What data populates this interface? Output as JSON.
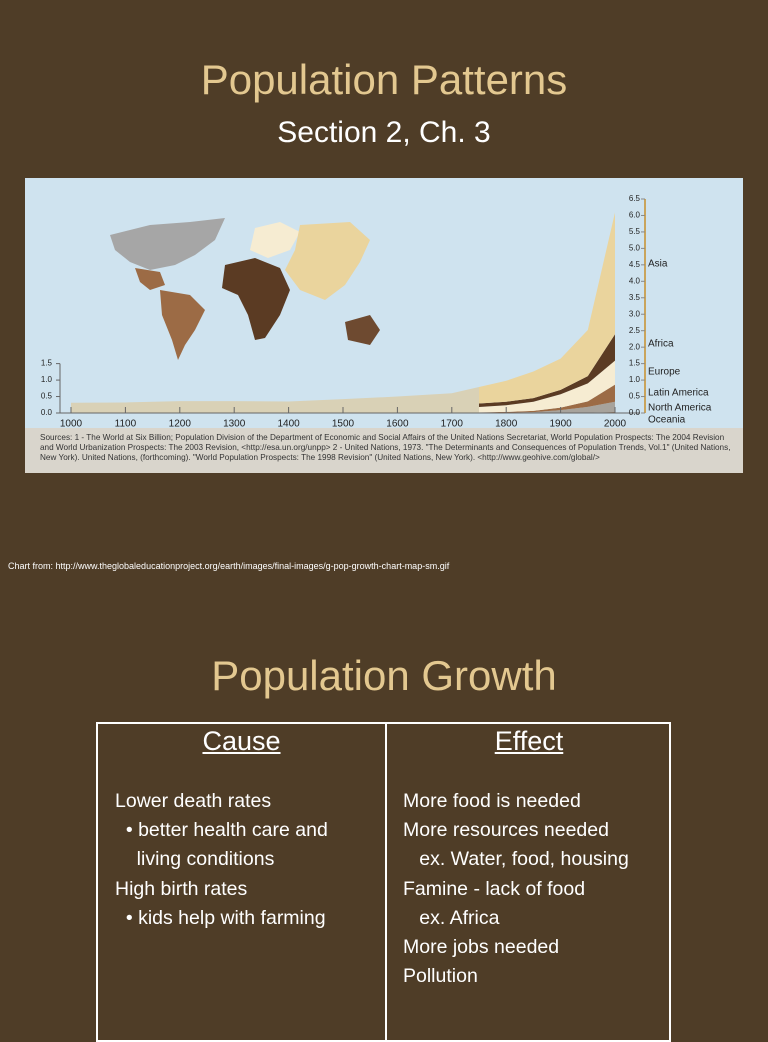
{
  "slide1": {
    "title": "Population Patterns",
    "subtitle": "Section 2, Ch. 3",
    "credit": "Chart from: http://www.theglobaleducationproject.org/earth/images/final-images/g-pop-growth-chart-map-sm.gif"
  },
  "figure": {
    "type": "area",
    "early": {
      "x": [
        1000,
        1100,
        1200,
        1300,
        1400,
        1500,
        1600,
        1700,
        1750
      ],
      "values": [
        0.31,
        0.32,
        0.36,
        0.36,
        0.35,
        0.42,
        0.5,
        0.6,
        0.79
      ],
      "color": "#d9d1b6"
    },
    "x": [
      1750,
      1800,
      1850,
      1900,
      1950,
      2000
    ],
    "series": [
      {
        "name": "Oceania",
        "color": "#8a6a4c",
        "values": [
          0.002,
          0.002,
          0.002,
          0.006,
          0.013,
          0.031
        ]
      },
      {
        "name": "North America",
        "color": "#a7a39c",
        "values": [
          0.002,
          0.007,
          0.026,
          0.082,
          0.172,
          0.31
        ]
      },
      {
        "name": "Latin America",
        "color": "#9c6b45",
        "values": [
          0.016,
          0.024,
          0.038,
          0.074,
          0.167,
          0.52
        ]
      },
      {
        "name": "Europe",
        "color": "#f6ecd2",
        "values": [
          0.163,
          0.203,
          0.276,
          0.408,
          0.547,
          0.73
        ]
      },
      {
        "name": "Africa",
        "color": "#5b3b23",
        "values": [
          0.106,
          0.107,
          0.111,
          0.133,
          0.221,
          0.8
        ]
      },
      {
        "name": "Asia",
        "color": "#ead49d",
        "values": [
          0.502,
          0.635,
          0.809,
          0.947,
          1.402,
          3.7
        ]
      }
    ],
    "xlim": [
      1000,
      2000
    ],
    "xticks": [
      1000,
      1100,
      1200,
      1300,
      1400,
      1500,
      1600,
      1700,
      1800,
      1900,
      2000
    ],
    "ylim": [
      0,
      6.5
    ],
    "yticks": [
      {
        "value": 0,
        "label": "0.0"
      },
      0.5,
      {
        "value": 1,
        "label": "1.0"
      },
      1.5,
      {
        "value": 2,
        "label": "2.0"
      },
      2.5,
      {
        "value": 3,
        "label": "3.0"
      },
      3.5,
      {
        "value": 4,
        "label": "4.0"
      },
      4.5,
      {
        "value": 5,
        "label": "5.0"
      },
      5.5,
      {
        "value": 6,
        "label": "6.0"
      },
      6.5
    ],
    "left_yticks": [
      {
        "value": 0,
        "label": "0.0"
      },
      0.5,
      {
        "value": 1,
        "label": "1.0"
      },
      1.5
    ],
    "sources": "Sources: 1 - The World at Six Billion; Population Division of the Department of Economic and Social Affairs of the United Nations Secretariat, World Population Prospects: The 2004 Revision and World Urbanization Prospects: The 2003 Revision, <http://esa.un.org/unpp> 2 - United Nations, 1973. \"The Determinants and Consequences of Population Trends, Vol.1\" (United Nations, New York). United Nations, (forthcoming). \"World Population Prospects: The 1998 Revision\" (United Nations, New York). <http://www.geohive.com/global/>"
  },
  "slide2": {
    "title": "Population Growth",
    "table": {
      "headers": [
        "Cause",
        "Effect"
      ],
      "cause": [
        "Lower death rates",
        "  • better health care and",
        "    living conditions",
        "High birth rates",
        "  • kids help with farming"
      ],
      "effect": [
        "More food is needed",
        "More resources needed",
        "   ex. Water, food, housing",
        "Famine - lack of food",
        "   ex. Africa",
        "More jobs needed",
        "Pollution"
      ]
    }
  }
}
